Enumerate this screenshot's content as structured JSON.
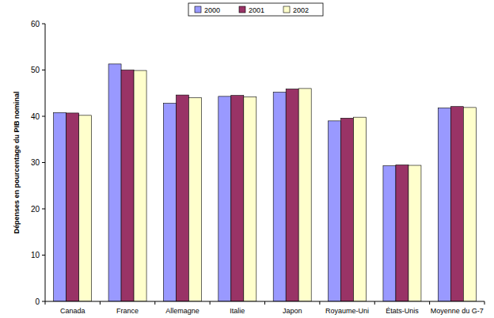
{
  "chart_data": {
    "type": "bar",
    "y_label": "Dépenses en pourcentage du PIB nominal",
    "categories": [
      "Canada",
      "France",
      "Allemagne",
      "Italie",
      "Japon",
      "Royaume-Uni",
      "États-Unis",
      "Moyenne du G-7"
    ],
    "series": [
      {
        "name": "2000",
        "color": "#9999ff",
        "values": [
          40.8,
          51.3,
          42.8,
          44.3,
          45.2,
          39.0,
          29.3,
          41.8
        ]
      },
      {
        "name": "2001",
        "color": "#993366",
        "values": [
          40.7,
          50.0,
          44.6,
          44.5,
          45.9,
          39.6,
          29.5,
          42.1
        ]
      },
      {
        "name": "2002",
        "color": "#ffffcc",
        "values": [
          40.2,
          49.9,
          44.0,
          44.2,
          46.0,
          39.8,
          29.4,
          41.9
        ]
      }
    ],
    "ylim": [
      0,
      60
    ],
    "yticks": [
      0,
      10,
      20,
      30,
      40,
      50,
      60
    ],
    "grid": false,
    "legend": "top"
  }
}
